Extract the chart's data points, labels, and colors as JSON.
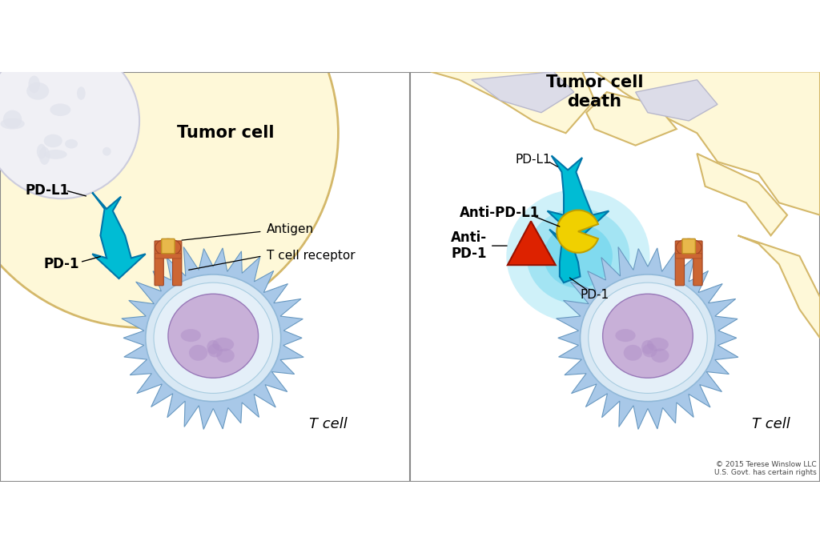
{
  "bg_color": "#ffffff",
  "left_panel": {
    "tumor_cell_label": "Tumor cell",
    "t_cell_label": "T cell",
    "pdl1_label": "PD-L1",
    "pd1_label": "PD-1",
    "antigen_label": "Antigen",
    "tcr_label": "T cell receptor",
    "tumor_body_color": "#fef8d8",
    "tumor_body_edge": "#d4b86a",
    "tumor_nucleus_color": "#f0f0f5",
    "tumor_nucleus_edge": "#ccccdd",
    "tcell_outer_color": "#a8c8e8",
    "tcell_outer_edge": "#6898c0",
    "tcell_inner_color": "#d8e8f4",
    "tcell_inner_edge": "#90b8d8",
    "tcell_nucleus_color": "#c8b0d8",
    "tcell_nucleus_edge": "#9878b8",
    "pdl1_color": "#00bcd4",
    "pdl1_dark": "#0077aa",
    "tcr_color": "#cc6633",
    "tcr_light": "#e08850",
    "antigen_color": "#e8b84b",
    "antigen_edge": "#c09020"
  },
  "right_panel": {
    "tumor_cell_label": "Tumor cell\ndeath",
    "t_cell_label": "T cell",
    "pdl1_label": "PD-L1",
    "pd1_label": "PD-1",
    "antipdl1_label": "Anti-PD-L1",
    "antipd1_label": "Anti-\nPD-1",
    "antipdl1_color": "#f0d000",
    "antipdl1_edge": "#c0a000",
    "antipd1_color": "#dd2200",
    "antipd1_edge": "#991100",
    "glow_color": "#80d8f0"
  },
  "copyright": "© 2015 Terese Winslow LLC\nU.S. Govt. has certain rights",
  "label_fontsize": 12,
  "small_fontsize": 11
}
